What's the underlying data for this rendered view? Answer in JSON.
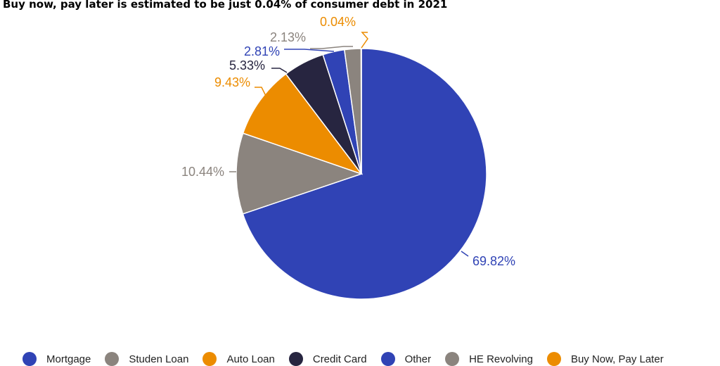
{
  "chart_data": {
    "type": "pie",
    "title": "Buy now, pay later is estimated to be just 0.04% of consumer debt in 2021",
    "slices": [
      {
        "name": "Mortgage",
        "value": 69.82,
        "label": "69.82%",
        "color": "#3043b5"
      },
      {
        "name": "Studen Loan",
        "value": 10.44,
        "label": "10.44%",
        "color": "#8b847e"
      },
      {
        "name": "Auto Loan",
        "value": 9.43,
        "label": "9.43%",
        "color": "#ec8c00"
      },
      {
        "name": "Credit Card",
        "value": 5.33,
        "label": "5.33%",
        "color": "#272540"
      },
      {
        "name": "Other",
        "value": 2.81,
        "label": "2.81%",
        "color": "#3043b5"
      },
      {
        "name": "HE Revolving",
        "value": 2.13,
        "label": "2.13%",
        "color": "#8b847e"
      },
      {
        "name": "Buy Now, Pay Later",
        "value": 0.04,
        "label": "0.04%",
        "color": "#ec8c00"
      }
    ],
    "start": "12 o'clock",
    "direction": "clockwise",
    "legend_position": "bottom"
  }
}
